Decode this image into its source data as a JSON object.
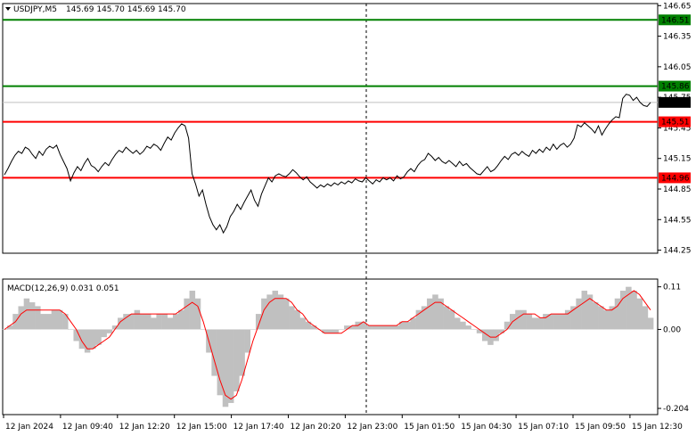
{
  "header": {
    "symbol": "USDJPY,M5",
    "ohlc": "145.69 145.70 145.69 145.70"
  },
  "macd_header": "MACD(12,26,9) 0.031 0.051",
  "colors": {
    "price": "#000000",
    "red_level": "#ff0000",
    "green_level": "#008000",
    "histogram": "#c0c0c0",
    "signal": "#ff0000",
    "current_price_tag": "#000000"
  },
  "chart_data": [
    {
      "type": "line",
      "title": "USDJPY,M5",
      "y_ticks": [
        "146.65",
        "146.35",
        "146.05",
        "145.75",
        "145.45",
        "145.15",
        "144.85",
        "144.55",
        "144.25"
      ],
      "ylim": [
        144.22,
        146.67
      ],
      "x_ticks": [
        "12 Jan 2024",
        "12 Jan 09:40",
        "12 Jan 12:20",
        "12 Jan 15:00",
        "12 Jan 17:40",
        "12 Jan 20:20",
        "12 Jan 23:00",
        "15 Jan 01:50",
        "15 Jan 04:30",
        "15 Jan 07:10",
        "15 Jan 09:50",
        "15 Jan 12:30"
      ],
      "levels": [
        {
          "value": 146.51,
          "label": "146.51",
          "color": "#008000"
        },
        {
          "value": 145.86,
          "label": "145.86",
          "color": "#008000"
        },
        {
          "value": 145.51,
          "label": "145.51",
          "color": "#ff0000"
        },
        {
          "value": 144.96,
          "label": "144.96",
          "color": "#ff0000"
        }
      ],
      "current_price": {
        "value": 145.7,
        "label": "145.70"
      },
      "series": [
        {
          "values": [
            144.99,
            145.05,
            145.12,
            145.18,
            145.22,
            145.2,
            145.26,
            145.24,
            145.19,
            145.15,
            145.22,
            145.18,
            145.24,
            145.27,
            145.25,
            145.28,
            145.19,
            145.12,
            145.05,
            144.93,
            145.01,
            145.07,
            145.03,
            145.1,
            145.15,
            145.08,
            145.06,
            145.02,
            145.07,
            145.11,
            145.08,
            145.14,
            145.19,
            145.23,
            145.21,
            145.26,
            145.23,
            145.2,
            145.23,
            145.19,
            145.22,
            145.27,
            145.25,
            145.29,
            145.27,
            145.23,
            145.3,
            145.36,
            145.33,
            145.4,
            145.45,
            145.49,
            145.47,
            145.35,
            145.0,
            144.9,
            144.78,
            144.84,
            144.7,
            144.58,
            144.5,
            144.45,
            144.5,
            144.42,
            144.48,
            144.58,
            144.63,
            144.7,
            144.65,
            144.72,
            144.78,
            144.84,
            144.74,
            144.68,
            144.8,
            144.88,
            144.96,
            144.92,
            144.98,
            145.0,
            144.98,
            144.97,
            145.0,
            145.04,
            145.01,
            144.97,
            144.94,
            144.97,
            144.92,
            144.89,
            144.86,
            144.89,
            144.87,
            144.9,
            144.88,
            144.91,
            144.89,
            144.92,
            144.9,
            144.93,
            144.91,
            144.95,
            144.93,
            144.92,
            144.96,
            144.93,
            144.9,
            144.94,
            144.92,
            144.96,
            144.94,
            144.96,
            144.93,
            144.98,
            144.95,
            144.97,
            145.02,
            145.05,
            145.02,
            145.08,
            145.12,
            145.14,
            145.2,
            145.17,
            145.13,
            145.16,
            145.12,
            145.1,
            145.13,
            145.1,
            145.07,
            145.12,
            145.08,
            145.1,
            145.06,
            145.03,
            145.0,
            144.99,
            145.03,
            145.07,
            145.02,
            145.04,
            145.08,
            145.13,
            145.17,
            145.14,
            145.19,
            145.21,
            145.18,
            145.22,
            145.19,
            145.17,
            145.23,
            145.2,
            145.24,
            145.21,
            145.26,
            145.23,
            145.29,
            145.24,
            145.28,
            145.3,
            145.26,
            145.29,
            145.35,
            145.48,
            145.46,
            145.5,
            145.47,
            145.44,
            145.4,
            145.47,
            145.38,
            145.44,
            145.49,
            145.53,
            145.56,
            145.55,
            145.74,
            145.78,
            145.77,
            145.72,
            145.75,
            145.7,
            145.67,
            145.66,
            145.7
          ]
        }
      ]
    },
    {
      "type": "bar",
      "title": "MACD(12,26,9)",
      "y_ticks": [
        "0.11",
        "0.00",
        "-0.204"
      ],
      "ylim": [
        -0.22,
        0.13
      ],
      "series": [
        {
          "name": "MACD",
          "values": [
            0.0,
            0.01,
            0.04,
            0.06,
            0.08,
            0.07,
            0.06,
            0.04,
            0.04,
            0.05,
            0.05,
            0.04,
            0.0,
            -0.03,
            -0.05,
            -0.06,
            -0.05,
            -0.04,
            -0.02,
            -0.01,
            0.01,
            0.03,
            0.04,
            0.04,
            0.05,
            0.04,
            0.04,
            0.03,
            0.04,
            0.04,
            0.03,
            0.04,
            0.05,
            0.08,
            0.1,
            0.08,
            0.0,
            -0.06,
            -0.12,
            -0.17,
            -0.2,
            -0.19,
            -0.16,
            -0.12,
            -0.06,
            0.0,
            0.04,
            0.08,
            0.09,
            0.1,
            0.09,
            0.08,
            0.06,
            0.05,
            0.03,
            0.02,
            0.01,
            0.0,
            -0.01,
            -0.01,
            -0.01,
            0.0,
            0.01,
            0.01,
            0.02,
            0.02,
            0.01,
            0.01,
            0.01,
            0.01,
            0.01,
            0.01,
            0.02,
            0.02,
            0.03,
            0.05,
            0.06,
            0.08,
            0.09,
            0.08,
            0.06,
            0.05,
            0.03,
            0.02,
            0.01,
            0.0,
            -0.01,
            -0.03,
            -0.04,
            -0.03,
            -0.01,
            0.02,
            0.04,
            0.05,
            0.05,
            0.04,
            0.03,
            0.03,
            0.04,
            0.04,
            0.04,
            0.04,
            0.05,
            0.06,
            0.08,
            0.1,
            0.09,
            0.07,
            0.06,
            0.05,
            0.06,
            0.08,
            0.1,
            0.11,
            0.1,
            0.08,
            0.06,
            0.03
          ]
        },
        {
          "name": "Signal",
          "values": [
            0.0,
            0.01,
            0.02,
            0.04,
            0.05,
            0.05,
            0.05,
            0.05,
            0.05,
            0.05,
            0.05,
            0.04,
            0.02,
            0.0,
            -0.03,
            -0.05,
            -0.05,
            -0.04,
            -0.03,
            -0.02,
            0.0,
            0.02,
            0.03,
            0.04,
            0.04,
            0.04,
            0.04,
            0.04,
            0.04,
            0.04,
            0.04,
            0.04,
            0.05,
            0.06,
            0.07,
            0.06,
            0.02,
            -0.03,
            -0.08,
            -0.13,
            -0.17,
            -0.18,
            -0.17,
            -0.13,
            -0.08,
            -0.03,
            0.01,
            0.05,
            0.07,
            0.08,
            0.08,
            0.08,
            0.07,
            0.05,
            0.04,
            0.02,
            0.01,
            0.0,
            -0.01,
            -0.01,
            -0.01,
            -0.01,
            0.0,
            0.01,
            0.01,
            0.02,
            0.01,
            0.01,
            0.01,
            0.01,
            0.01,
            0.01,
            0.02,
            0.02,
            0.03,
            0.04,
            0.05,
            0.06,
            0.07,
            0.07,
            0.06,
            0.05,
            0.04,
            0.03,
            0.02,
            0.01,
            0.0,
            -0.01,
            -0.02,
            -0.02,
            -0.01,
            0.0,
            0.02,
            0.03,
            0.04,
            0.04,
            0.04,
            0.03,
            0.03,
            0.04,
            0.04,
            0.04,
            0.04,
            0.05,
            0.06,
            0.07,
            0.08,
            0.07,
            0.06,
            0.05,
            0.05,
            0.06,
            0.08,
            0.09,
            0.1,
            0.09,
            0.07,
            0.05
          ]
        }
      ]
    }
  ]
}
